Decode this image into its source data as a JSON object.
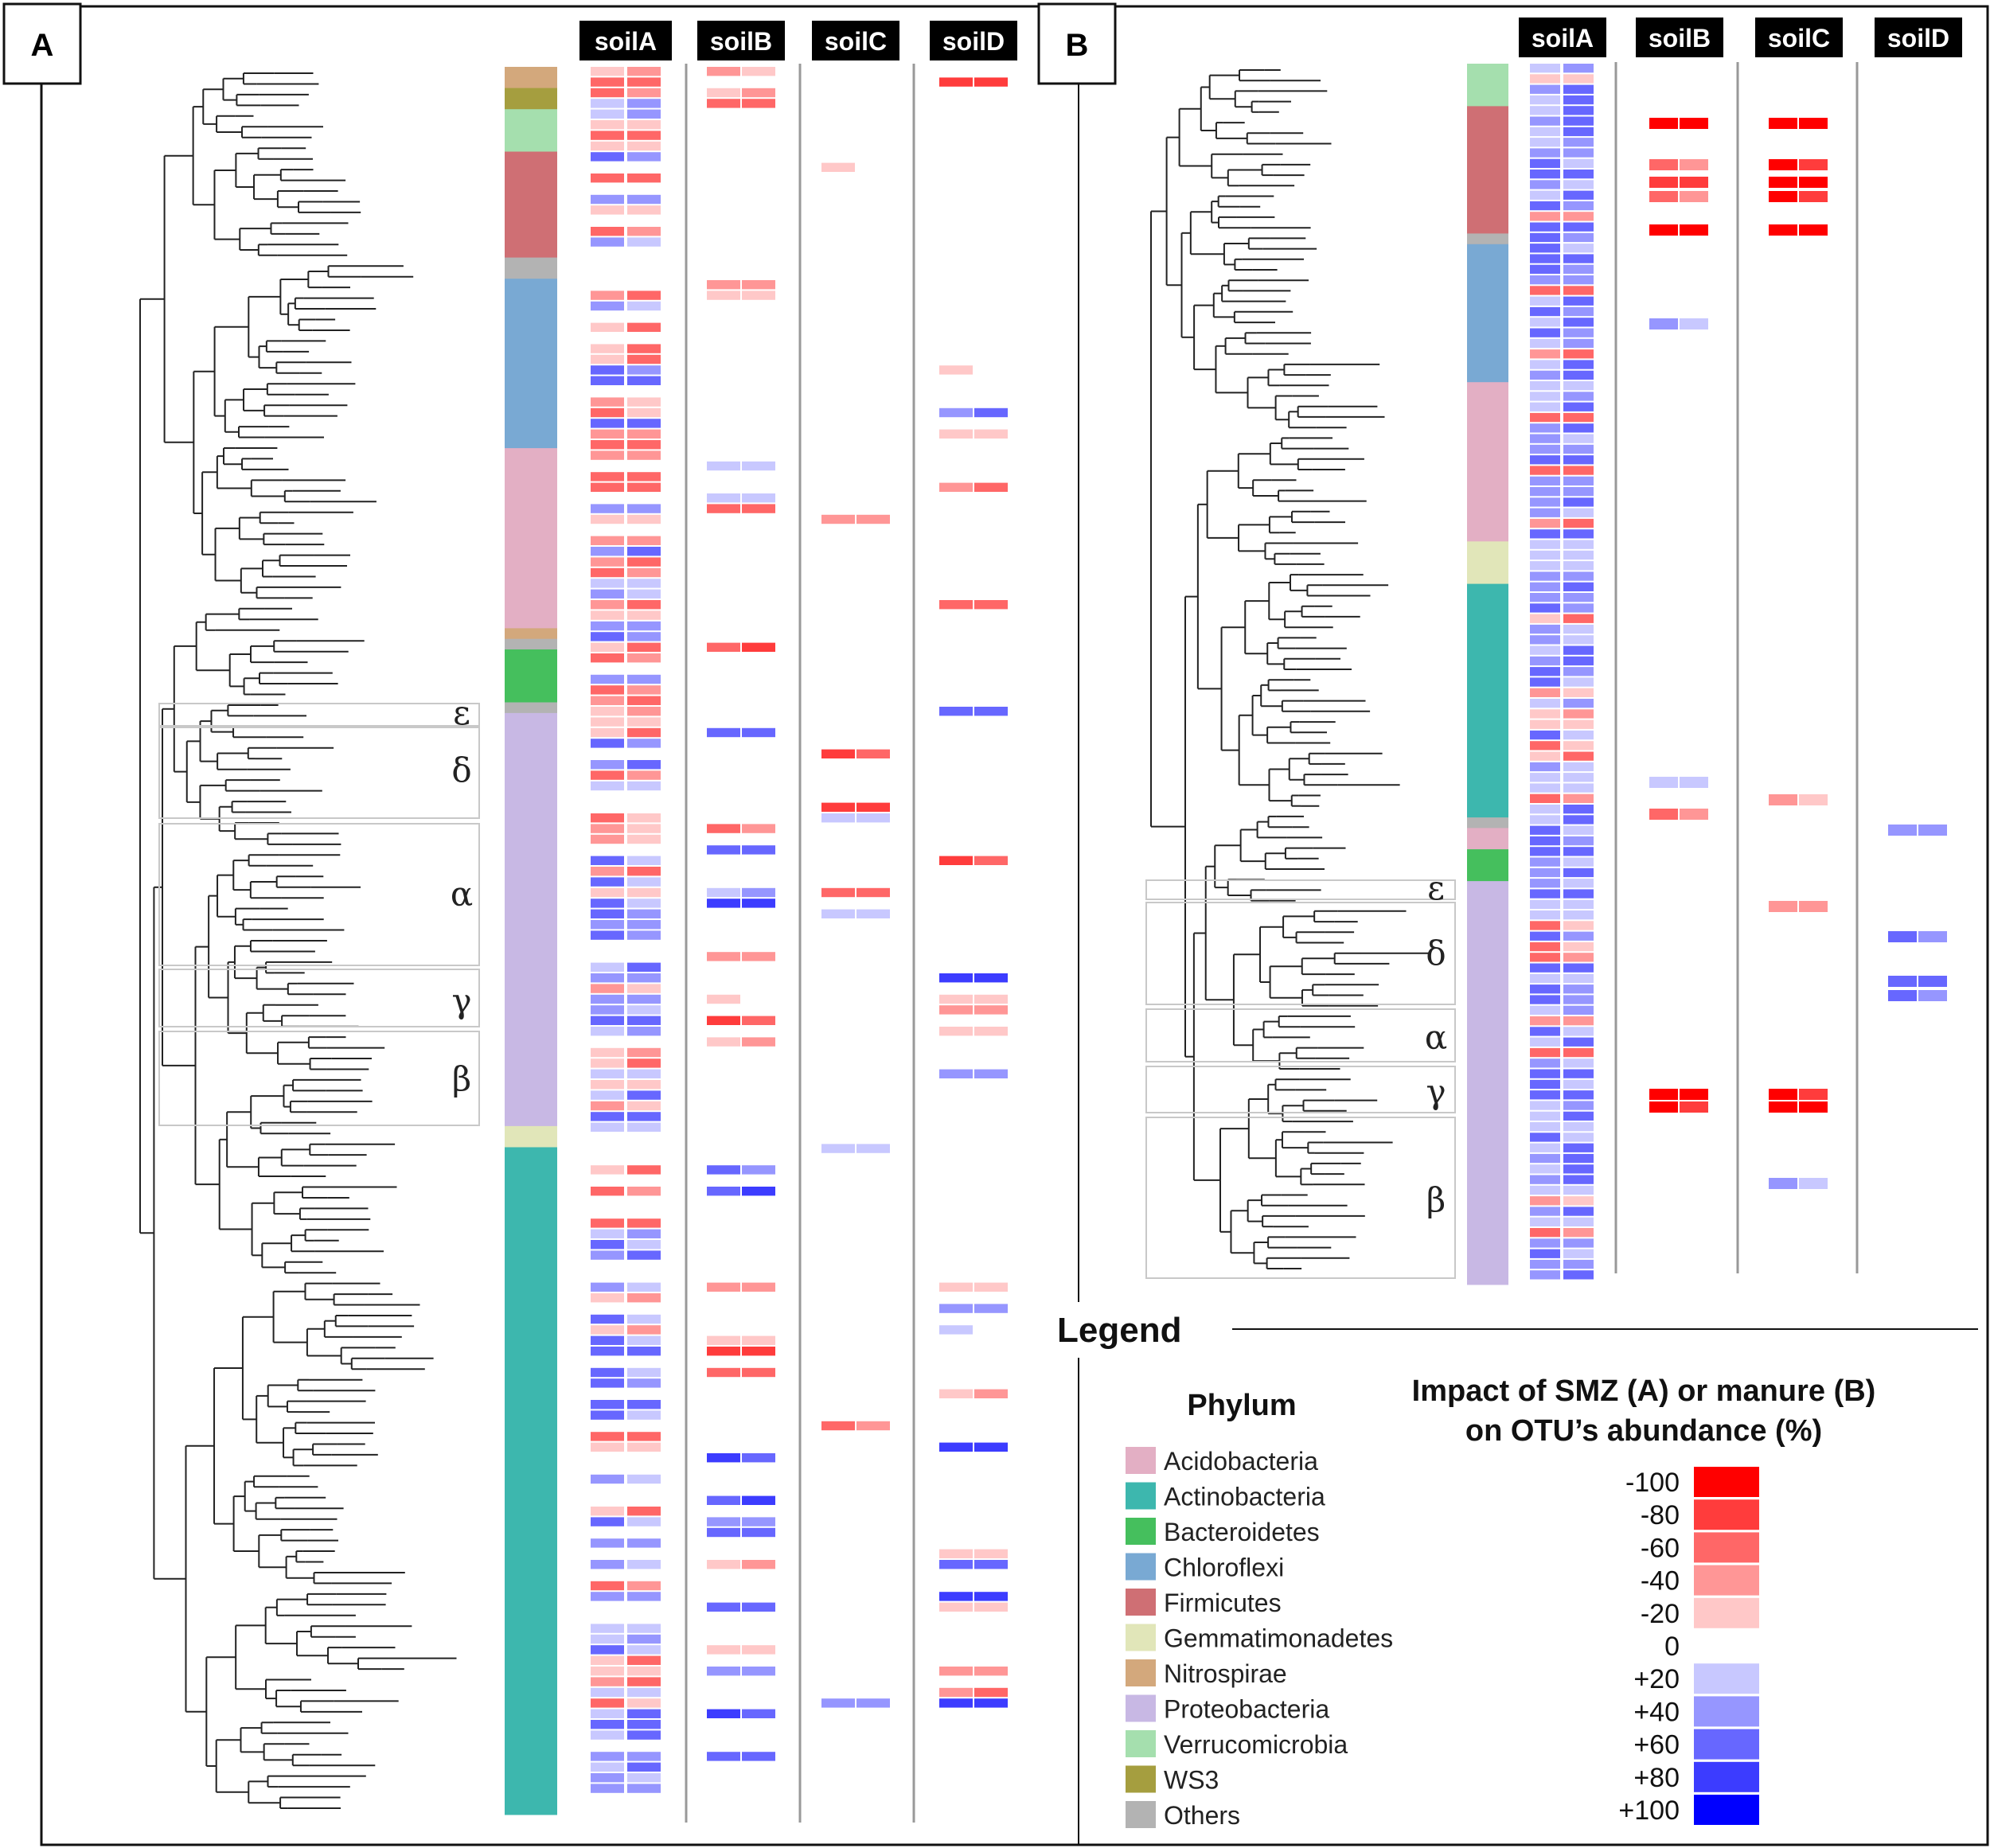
{
  "panels": [
    {
      "label": "A",
      "columns": [
        "soilA",
        "soilB",
        "soilC",
        "soilD"
      ],
      "clades": [
        "ε",
        "δ",
        "α",
        "γ",
        "β"
      ]
    },
    {
      "label": "B",
      "columns": [
        "soilA",
        "soilB",
        "soilC",
        "soilD"
      ],
      "clades": [
        "ε",
        "δ",
        "α",
        "γ",
        "β"
      ]
    }
  ],
  "legend": {
    "title": "Legend",
    "phylum_title": "Phylum",
    "phyla": [
      {
        "name": "Acidobacteria",
        "color": "#e3afc4"
      },
      {
        "name": "Actinobacteria",
        "color": "#3db7ae"
      },
      {
        "name": "Bacteroidetes",
        "color": "#45bf5d"
      },
      {
        "name": "Chloroflexi",
        "color": "#79a9d3"
      },
      {
        "name": "Firmicutes",
        "color": "#cf6f74"
      },
      {
        "name": "Gemmatimonadetes",
        "color": "#e1e6b9"
      },
      {
        "name": "Nitrospirae",
        "color": "#d3a87c"
      },
      {
        "name": "Proteobacteria",
        "color": "#c8b8e4"
      },
      {
        "name": "Verrucomicrobia",
        "color": "#a5dfae"
      },
      {
        "name": "WS3",
        "color": "#a59e3f"
      },
      {
        "name": "Others",
        "color": "#b3b3b3"
      }
    ],
    "scale_title_line1": "Impact of SMZ (A) or manure (B)",
    "scale_title_line2": "on OTU’s abundance (%)",
    "scale": [
      {
        "label": "-100",
        "color": "#ff0000"
      },
      {
        "label": "-80",
        "color": "#ff3c3c"
      },
      {
        "label": "-60",
        "color": "#ff6767"
      },
      {
        "label": "-40",
        "color": "#ff9696"
      },
      {
        "label": "-20",
        "color": "#ffc8c8"
      },
      {
        "label": "0",
        "color": "#ffffff"
      },
      {
        "label": "+20",
        "color": "#c8c8ff"
      },
      {
        "label": "+40",
        "color": "#9696ff"
      },
      {
        "label": "+60",
        "color": "#6767ff"
      },
      {
        "label": "+80",
        "color": "#3c3cff"
      },
      {
        "label": "+100",
        "color": "#0000ff"
      }
    ]
  },
  "diagram_data": {
    "panelA_phylum_strip": [
      {
        "phylum": "Nitrospirae",
        "rows": 2
      },
      {
        "phylum": "WS3",
        "rows": 2
      },
      {
        "phylum": "Verrucomicrobia",
        "rows": 4
      },
      {
        "phylum": "Firmicutes",
        "rows": 10
      },
      {
        "phylum": "Others",
        "rows": 2
      },
      {
        "phylum": "Chloroflexi",
        "rows": 16
      },
      {
        "phylum": "Acidobacteria",
        "rows": 17
      },
      {
        "phylum": "Nitrospirae",
        "rows": 1
      },
      {
        "phylum": "Others",
        "rows": 1
      },
      {
        "phylum": "Bacteroidetes",
        "rows": 5
      },
      {
        "phylum": "Others",
        "rows": 1
      },
      {
        "phylum": "Proteobacteria",
        "rows": 39
      },
      {
        "phylum": "Gemmatimonadetes",
        "rows": 2
      },
      {
        "phylum": "Actinobacteria",
        "rows": 63
      }
    ],
    "panelB_phylum_strip": [
      {
        "phylum": "Verrucomicrobia",
        "rows": 4
      },
      {
        "phylum": "Firmicutes",
        "rows": 12
      },
      {
        "phylum": "Others",
        "rows": 1
      },
      {
        "phylum": "Chloroflexi",
        "rows": 13
      },
      {
        "phylum": "Acidobacteria",
        "rows": 15
      },
      {
        "phylum": "Gemmatimonadetes",
        "rows": 4
      },
      {
        "phylum": "Actinobacteria",
        "rows": 22
      },
      {
        "phylum": "Others",
        "rows": 1
      },
      {
        "phylum": "Acidobacteria",
        "rows": 2
      },
      {
        "phylum": "Bacteroidetes",
        "rows": 3
      },
      {
        "phylum": "Proteobacteria",
        "rows": 38
      }
    ],
    "panelA_heat": {
      "soilA": [
        [
          5,
          3
        ],
        [
          null,
          null
        ],
        [
          null,
          null
        ],
        [
          null,
          null
        ],
        [
          null,
          null
        ],
        [
          null,
          null
        ],
        [
          null,
          null
        ],
        [
          null,
          null
        ],
        [
          null,
          null
        ],
        [
          2,
          2
        ],
        [
          3,
          3
        ],
        [
          4,
          4
        ],
        [
          2,
          2
        ],
        [
          2,
          3
        ],
        [
          4,
          5
        ],
        [
          3,
          3
        ],
        [
          1,
          2
        ],
        [
          3,
          4
        ],
        [
          null,
          null
        ],
        [
          -2,
          -2
        ],
        [
          1,
          1
        ],
        [
          3,
          3
        ],
        [
          4,
          4
        ],
        [
          3,
          3
        ],
        [
          1,
          1
        ],
        [
          null,
          null
        ],
        [
          -1,
          2
        ],
        [
          null,
          null
        ],
        [
          null,
          null
        ],
        [
          -2,
          2
        ],
        [
          1,
          1
        ],
        [
          -3,
          -1
        ],
        [
          -3,
          -5
        ],
        [
          null,
          null
        ],
        [
          null,
          null
        ],
        [
          null,
          null
        ],
        [
          2,
          2
        ],
        [
          null,
          null
        ],
        [
          2,
          2
        ],
        [
          2,
          2
        ],
        [
          2,
          3
        ],
        [
          1,
          2
        ],
        [
          2,
          2
        ],
        [
          null,
          null
        ],
        [
          null,
          null
        ],
        [
          2,
          2
        ],
        [
          null,
          null
        ],
        [
          null,
          null
        ],
        [
          null,
          null
        ],
        [
          null,
          null
        ],
        [
          null,
          null
        ],
        [
          null,
          null
        ],
        [
          4,
          5
        ],
        [
          null,
          null
        ],
        [
          -2,
          -2
        ],
        [
          2,
          5
        ],
        [
          1,
          2
        ],
        [
          null,
          null
        ],
        [
          5
        ],
        [
          null,
          null
        ],
        [
          null,
          null
        ],
        [
          null,
          null
        ],
        [
          3,
          2
        ],
        [
          3,
          2
        ],
        [
          null,
          null
        ],
        [
          null,
          null
        ],
        [
          null,
          null
        ],
        [
          null,
          null
        ],
        [
          2,
          2
        ],
        [
          3,
          1
        ],
        [
          -2,
          -3
        ],
        [
          -2,
          -2
        ],
        [
          -2,
          -2
        ],
        [
          -2,
          -2
        ],
        [
          -2,
          -2
        ],
        [
          1,
          3
        ],
        [
          2,
          1
        ],
        [
          2,
          2
        ],
        [
          2,
          2
        ],
        [
          1,
          2
        ],
        [
          1,
          1
        ],
        [
          1,
          1
        ],
        [
          null,
          null
        ],
        [
          null,
          null
        ],
        [
          -2,
          -4
        ],
        [
          null,
          null
        ],
        [
          -1,
          -2
        ],
        [
          null,
          null
        ],
        [
          null,
          null
        ],
        [
          5,
          5
        ],
        [
          4,
          4
        ],
        [
          1,
          1
        ],
        [
          null,
          null
        ],
        [
          null,
          null
        ],
        [
          null,
          null
        ],
        [
          -4,
          -5
        ],
        [
          -3,
          -4
        ],
        [
          -3,
          -4
        ],
        [
          -3,
          -5
        ],
        [
          4,
          1
        ],
        [
          null,
          null
        ],
        [
          1,
          -1
        ],
        [
          -1,
          -1
        ],
        [
          -1,
          -1
        ]
      ]
    },
    "tree": "unlabeled phylogenetic tree"
  }
}
